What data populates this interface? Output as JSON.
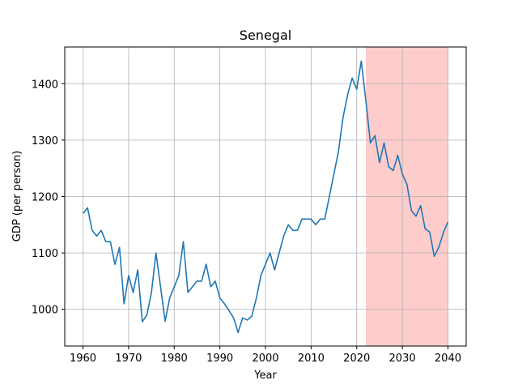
{
  "chart_data": {
    "type": "line",
    "title": "Senegal",
    "xlabel": "Year",
    "ylabel": "GDP (per person)",
    "xlim": [
      1956,
      2044
    ],
    "ylim": [
      935,
      1465
    ],
    "xticks": [
      1960,
      1970,
      1980,
      1990,
      2000,
      2010,
      2020,
      2030,
      2040
    ],
    "yticks": [
      1000,
      1100,
      1200,
      1300,
      1400
    ],
    "grid": true,
    "highlight_span": {
      "from": 2022,
      "to": 2040,
      "color": "#ffcccc"
    },
    "series_color": "#1f77b4",
    "series": [
      {
        "x": [
          1960,
          1961,
          1962,
          1963,
          1964,
          1965,
          1966,
          1967,
          1968,
          1969,
          1970,
          1971,
          1972,
          1973,
          1974,
          1975,
          1976,
          1977,
          1978,
          1979,
          1980,
          1981,
          1982,
          1983,
          1984,
          1985,
          1986,
          1987,
          1988,
          1989,
          1990,
          1991,
          1992,
          1993,
          1994,
          1995,
          1996,
          1997,
          1998,
          1999,
          2000,
          2001,
          2002,
          2003,
          2004,
          2005,
          2006,
          2007,
          2008,
          2009,
          2010,
          2011,
          2012,
          2013,
          2014,
          2015,
          2016,
          2017,
          2018,
          2019,
          2020,
          2021,
          2022,
          2023,
          2024,
          2025,
          2026,
          2027,
          2028,
          2029,
          2030,
          2031,
          2032,
          2033,
          2034,
          2035,
          2036,
          2037,
          2038,
          2039,
          2040
        ],
        "values": [
          1170,
          1180,
          1140,
          1130,
          1140,
          1120,
          1120,
          1080,
          1110,
          1010,
          1060,
          1030,
          1070,
          978,
          990,
          1030,
          1100,
          1040,
          979,
          1020,
          1040,
          1060,
          1120,
          1030,
          1040,
          1050,
          1050,
          1080,
          1040,
          1050,
          1020,
          1010,
          998,
          985,
          959,
          985,
          981,
          988,
          1020,
          1060,
          1080,
          1100,
          1070,
          1100,
          1130,
          1150,
          1140,
          1140,
          1160,
          1160,
          1160,
          1150,
          1160,
          1160,
          1200,
          1240,
          1280,
          1340,
          1380,
          1410,
          1390,
          1440,
          1370,
          1295,
          1308,
          1260,
          1295,
          1253,
          1246,
          1273,
          1240,
          1222,
          1175,
          1165,
          1184,
          1143,
          1137,
          1094,
          1110,
          1136,
          1155
        ]
      }
    ]
  }
}
